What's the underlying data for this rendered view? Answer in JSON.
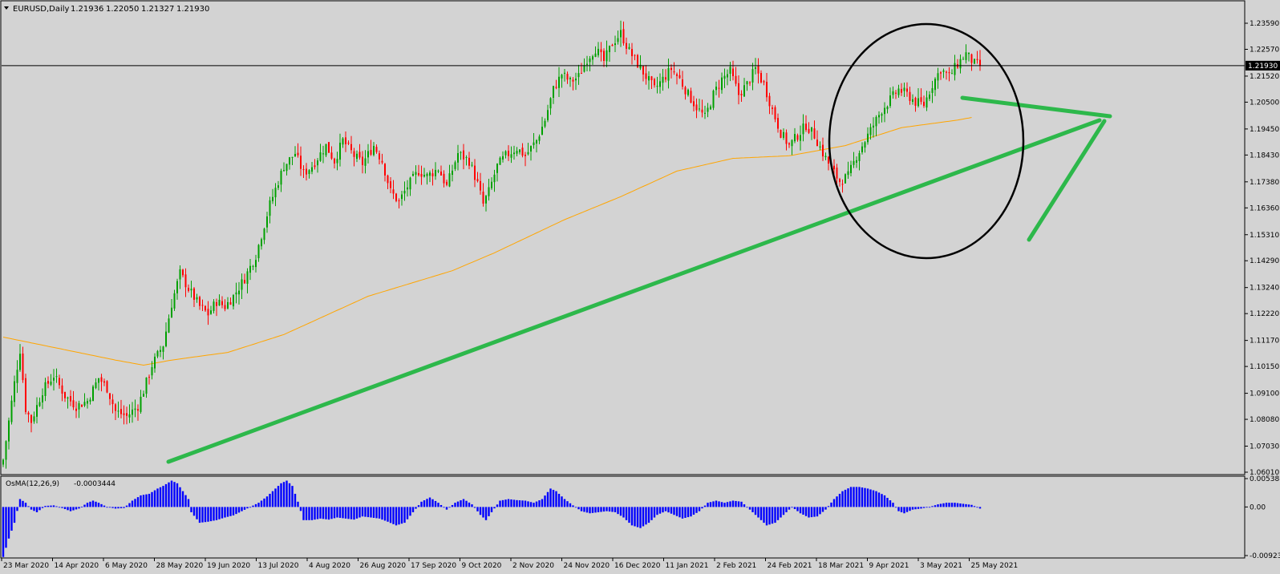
{
  "window": {
    "symbol_label": "EURUSD,Daily",
    "ohlc": [
      "1.21936",
      "1.22050",
      "1.21327",
      "1.21930"
    ]
  },
  "colors": {
    "background": "#d3d3d3",
    "bull": "#00a000",
    "bear": "#ff0000",
    "ma": "#ffa500",
    "osma": "#0000ff",
    "annotation_green": "#2db84b",
    "annotation_circle": "#000000",
    "price_line": "#000000"
  },
  "chart_data": [
    {
      "type": "candlestick",
      "instrument": "EURUSD",
      "timeframe": "Daily",
      "ylim": [
        1.0601,
        1.2359
      ],
      "yticks": [
        "1.23590",
        "1.22570",
        "1.21520",
        "1.20500",
        "1.19450",
        "1.18430",
        "1.17380",
        "1.16360",
        "1.15310",
        "1.14290",
        "1.13240",
        "1.12220",
        "1.11170",
        "1.10150",
        "1.09100",
        "1.08080",
        "1.07030",
        "1.06010"
      ],
      "current_price": "1.21930",
      "xticks": [
        "23 Mar 2020",
        "14 Apr 2020",
        "6 May 2020",
        "28 May 2020",
        "19 Jun 2020",
        "13 Jul 2020",
        "4 Aug 2020",
        "26 Aug 2020",
        "17 Sep 2020",
        "9 Oct 2020",
        "2 Nov 2020",
        "24 Nov 2020",
        "16 Dec 2020",
        "11 Jan 2021",
        "2 Feb 2021",
        "24 Feb 2021",
        "18 Mar 2021",
        "9 Apr 2021",
        "3 May 2021",
        "25 May 2021"
      ],
      "close_path": [
        [
          0,
          1.065
        ],
        [
          4,
          1.095
        ],
        [
          6,
          1.108
        ],
        [
          8,
          1.085
        ],
        [
          10,
          1.08
        ],
        [
          14,
          1.092
        ],
        [
          18,
          1.098
        ],
        [
          22,
          1.09
        ],
        [
          26,
          1.086
        ],
        [
          30,
          1.088
        ],
        [
          34,
          1.097
        ],
        [
          37,
          1.093
        ],
        [
          40,
          1.084
        ],
        [
          44,
          1.082
        ],
        [
          48,
          1.086
        ],
        [
          50,
          1.092
        ],
        [
          53,
          1.102
        ],
        [
          57,
          1.11
        ],
        [
          60,
          1.126
        ],
        [
          63,
          1.138
        ],
        [
          66,
          1.132
        ],
        [
          70,
          1.125
        ],
        [
          73,
          1.122
        ],
        [
          76,
          1.127
        ],
        [
          79,
          1.125
        ],
        [
          82,
          1.129
        ],
        [
          86,
          1.136
        ],
        [
          90,
          1.145
        ],
        [
          95,
          1.165
        ],
        [
          100,
          1.18
        ],
        [
          104,
          1.185
        ],
        [
          107,
          1.177
        ],
        [
          110,
          1.18
        ],
        [
          115,
          1.188
        ],
        [
          118,
          1.182
        ],
        [
          121,
          1.19
        ],
        [
          125,
          1.184
        ],
        [
          128,
          1.181
        ],
        [
          132,
          1.188
        ],
        [
          135,
          1.182
        ],
        [
          138,
          1.17
        ],
        [
          141,
          1.166
        ],
        [
          144,
          1.172
        ],
        [
          148,
          1.178
        ],
        [
          151,
          1.176
        ],
        [
          155,
          1.179
        ],
        [
          158,
          1.172
        ],
        [
          162,
          1.185
        ],
        [
          166,
          1.182
        ],
        [
          169,
          1.173
        ],
        [
          171,
          1.165
        ],
        [
          173,
          1.17
        ],
        [
          176,
          1.18
        ],
        [
          179,
          1.184
        ],
        [
          183,
          1.187
        ],
        [
          186,
          1.184
        ],
        [
          190,
          1.19
        ],
        [
          193,
          1.198
        ],
        [
          196,
          1.21
        ],
        [
          199,
          1.216
        ],
        [
          202,
          1.213
        ],
        [
          205,
          1.215
        ],
        [
          208,
          1.222
        ],
        [
          211,
          1.226
        ],
        [
          214,
          1.221
        ],
        [
          217,
          1.228
        ],
        [
          220,
          1.232
        ],
        [
          223,
          1.225
        ],
        [
          226,
          1.22
        ],
        [
          229,
          1.215
        ],
        [
          232,
          1.21
        ],
        [
          235,
          1.214
        ],
        [
          238,
          1.218
        ],
        [
          241,
          1.214
        ],
        [
          244,
          1.208
        ],
        [
          247,
          1.203
        ],
        [
          250,
          1.199
        ],
        [
          253,
          1.208
        ],
        [
          256,
          1.214
        ],
        [
          259,
          1.217
        ],
        [
          262,
          1.208
        ],
        [
          265,
          1.212
        ],
        [
          268,
          1.218
        ],
        [
          271,
          1.212
        ],
        [
          274,
          1.202
        ],
        [
          277,
          1.193
        ],
        [
          280,
          1.188
        ],
        [
          283,
          1.192
        ],
        [
          286,
          1.196
        ],
        [
          289,
          1.192
        ],
        [
          292,
          1.185
        ],
        [
          295,
          1.179
        ],
        [
          298,
          1.174
        ],
        [
          301,
          1.176
        ],
        [
          304,
          1.184
        ],
        [
          307,
          1.19
        ],
        [
          310,
          1.196
        ],
        [
          313,
          1.202
        ],
        [
          316,
          1.206
        ],
        [
          319,
          1.21
        ],
        [
          322,
          1.208
        ],
        [
          325,
          1.205
        ],
        [
          328,
          1.204
        ],
        [
          331,
          1.212
        ],
        [
          334,
          1.218
        ],
        [
          337,
          1.215
        ],
        [
          340,
          1.22
        ],
        [
          343,
          1.224
        ],
        [
          346,
          1.22
        ],
        [
          348,
          1.2193
        ]
      ],
      "moving_average_path": [
        [
          0,
          1.113
        ],
        [
          40,
          1.104
        ],
        [
          50,
          1.102
        ],
        [
          60,
          1.104
        ],
        [
          80,
          1.107
        ],
        [
          100,
          1.114
        ],
        [
          130,
          1.129
        ],
        [
          160,
          1.139
        ],
        [
          175,
          1.146
        ],
        [
          200,
          1.159
        ],
        [
          220,
          1.168
        ],
        [
          240,
          1.178
        ],
        [
          260,
          1.183
        ],
        [
          280,
          1.184
        ],
        [
          300,
          1.188
        ],
        [
          320,
          1.195
        ],
        [
          340,
          1.198
        ],
        [
          345,
          1.199
        ]
      ]
    },
    {
      "type": "bar",
      "name": "OsMA(12,26,9)",
      "current_value": "-0.0003444",
      "ylim": [
        -0.00923,
        0.005388
      ],
      "yticks": [
        "0.0053886",
        "0.00",
        "-0.009230"
      ],
      "values_path": [
        [
          0,
          -0.0095
        ],
        [
          2,
          -0.006
        ],
        [
          4,
          -0.003
        ],
        [
          6,
          0.0015
        ],
        [
          8,
          0.0008
        ],
        [
          10,
          -0.0005
        ],
        [
          12,
          -0.001
        ],
        [
          15,
          0.0002
        ],
        [
          18,
          0.0003
        ],
        [
          21,
          -0.0002
        ],
        [
          24,
          -0.0008
        ],
        [
          27,
          -0.0003
        ],
        [
          30,
          0.0008
        ],
        [
          32,
          0.0012
        ],
        [
          34,
          0.0008
        ],
        [
          37,
          0.0
        ],
        [
          40,
          -0.0003
        ],
        [
          43,
          -0.0002
        ],
        [
          46,
          0.0012
        ],
        [
          49,
          0.0022
        ],
        [
          52,
          0.0025
        ],
        [
          55,
          0.0035
        ],
        [
          57,
          0.004
        ],
        [
          60,
          0.005
        ],
        [
          62,
          0.0045
        ],
        [
          64,
          0.003
        ],
        [
          66,
          0.0015
        ],
        [
          67,
          -0.001
        ],
        [
          70,
          -0.003
        ],
        [
          73,
          -0.0028
        ],
        [
          76,
          -0.0025
        ],
        [
          79,
          -0.002
        ],
        [
          82,
          -0.0016
        ],
        [
          85,
          -0.0008
        ],
        [
          88,
          0.0
        ],
        [
          91,
          0.0008
        ],
        [
          94,
          0.002
        ],
        [
          97,
          0.0035
        ],
        [
          99,
          0.0045
        ],
        [
          101,
          0.005
        ],
        [
          103,
          0.004
        ],
        [
          105,
          0.001
        ],
        [
          107,
          -0.0025
        ],
        [
          110,
          -0.0025
        ],
        [
          113,
          -0.0022
        ],
        [
          116,
          -0.0024
        ],
        [
          119,
          -0.002
        ],
        [
          122,
          -0.0022
        ],
        [
          125,
          -0.0024
        ],
        [
          128,
          -0.0018
        ],
        [
          131,
          -0.002
        ],
        [
          134,
          -0.0022
        ],
        [
          137,
          -0.0028
        ],
        [
          140,
          -0.0035
        ],
        [
          143,
          -0.003
        ],
        [
          146,
          -0.001
        ],
        [
          149,
          0.001
        ],
        [
          152,
          0.0018
        ],
        [
          155,
          0.0008
        ],
        [
          158,
          -0.0005
        ],
        [
          161,
          0.0008
        ],
        [
          164,
          0.0015
        ],
        [
          167,
          0.0005
        ],
        [
          170,
          -0.0015
        ],
        [
          172,
          -0.0025
        ],
        [
          174,
          -0.001
        ],
        [
          177,
          0.0012
        ],
        [
          180,
          0.0015
        ],
        [
          183,
          0.0013
        ],
        [
          186,
          0.0012
        ],
        [
          189,
          0.0008
        ],
        [
          192,
          0.0015
        ],
        [
          195,
          0.0035
        ],
        [
          197,
          0.003
        ],
        [
          200,
          0.0015
        ],
        [
          203,
          0.0003
        ],
        [
          206,
          -0.0008
        ],
        [
          209,
          -0.0012
        ],
        [
          212,
          -0.001
        ],
        [
          215,
          -0.0008
        ],
        [
          218,
          -0.001
        ],
        [
          221,
          -0.002
        ],
        [
          224,
          -0.0035
        ],
        [
          227,
          -0.004
        ],
        [
          230,
          -0.003
        ],
        [
          233,
          -0.0015
        ],
        [
          236,
          -0.0008
        ],
        [
          239,
          -0.0015
        ],
        [
          242,
          -0.0022
        ],
        [
          245,
          -0.0018
        ],
        [
          248,
          -0.0008
        ],
        [
          251,
          0.0008
        ],
        [
          254,
          0.0012
        ],
        [
          257,
          0.0008
        ],
        [
          260,
          0.0012
        ],
        [
          263,
          0.001
        ],
        [
          266,
          -0.0005
        ],
        [
          269,
          -0.002
        ],
        [
          272,
          -0.0035
        ],
        [
          275,
          -0.003
        ],
        [
          278,
          -0.0015
        ],
        [
          281,
          0.0
        ],
        [
          284,
          -0.0012
        ],
        [
          287,
          -0.002
        ],
        [
          290,
          -0.0018
        ],
        [
          293,
          -0.0005
        ],
        [
          296,
          0.0015
        ],
        [
          299,
          0.003
        ],
        [
          302,
          0.0038
        ],
        [
          305,
          0.0038
        ],
        [
          308,
          0.0035
        ],
        [
          311,
          0.003
        ],
        [
          314,
          0.0022
        ],
        [
          317,
          0.0008
        ],
        [
          319,
          -0.0008
        ],
        [
          321,
          -0.0012
        ],
        [
          324,
          -0.0005
        ],
        [
          327,
          -0.0003
        ],
        [
          330,
          0.0
        ],
        [
          333,
          0.0005
        ],
        [
          336,
          0.0008
        ],
        [
          339,
          0.0008
        ],
        [
          342,
          0.0006
        ],
        [
          345,
          0.0004
        ],
        [
          348,
          -0.0003
        ]
      ]
    }
  ]
}
